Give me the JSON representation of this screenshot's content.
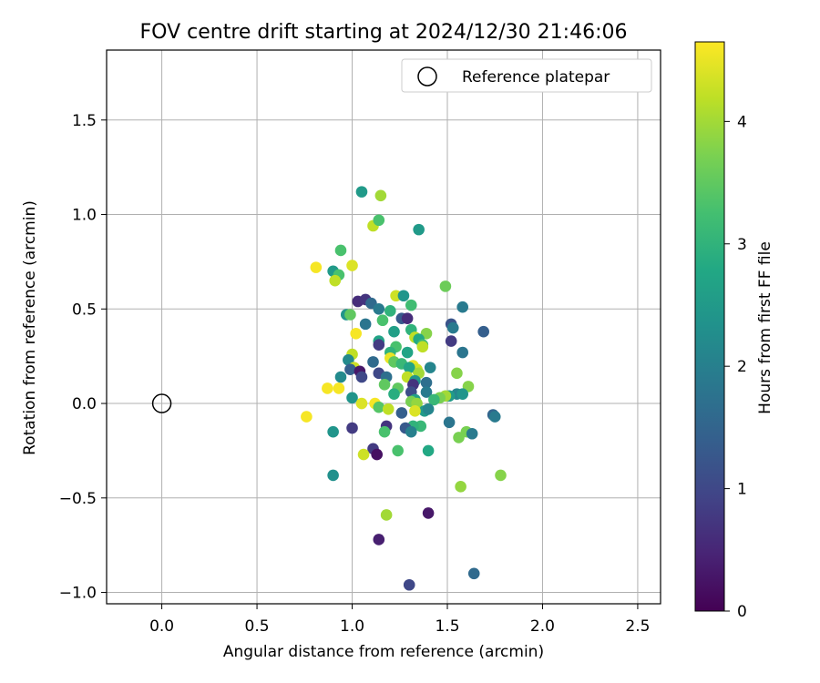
{
  "chart_data": {
    "type": "scatter",
    "title": "FOV centre drift starting at 2024/12/30 21:46:06",
    "xlabel": "Angular distance from reference (arcmin)",
    "ylabel": "Rotation from reference (arcmin)",
    "xlim": [
      -0.29,
      2.62
    ],
    "ylim": [
      -1.06,
      1.87
    ],
    "xticks": [
      "0.0",
      "0.5",
      "1.0",
      "1.5",
      "2.0",
      "2.5"
    ],
    "yticks": [
      "−1.0",
      "−0.5",
      "0.0",
      "0.5",
      "1.0",
      "1.5"
    ],
    "grid": true,
    "legend": {
      "placement": "top-right",
      "entries": [
        "Reference platepar"
      ]
    },
    "reference_point": {
      "x": 0.0,
      "y": 0.0
    },
    "colorbar": {
      "label": "Hours from first FF file",
      "colormap": "viridis",
      "range": [
        0,
        4.65
      ],
      "ticks": [
        "0",
        "1",
        "2",
        "3",
        "4"
      ]
    },
    "points": [
      [
        1.05,
        1.12,
        2.5
      ],
      [
        1.15,
        1.1,
        4.0
      ],
      [
        1.35,
        0.92,
        2.5
      ],
      [
        1.11,
        0.94,
        4.2
      ],
      [
        1.14,
        0.97,
        3.3
      ],
      [
        0.94,
        0.81,
        3.3
      ],
      [
        0.81,
        0.72,
        4.6
      ],
      [
        0.9,
        0.7,
        2.5
      ],
      [
        0.93,
        0.68,
        3.3
      ],
      [
        1.0,
        0.73,
        4.4
      ],
      [
        0.91,
        0.65,
        4.2
      ],
      [
        1.49,
        0.62,
        3.6
      ],
      [
        1.23,
        0.57,
        4.3
      ],
      [
        1.27,
        0.57,
        2.4
      ],
      [
        1.03,
        0.54,
        0.6
      ],
      [
        1.07,
        0.55,
        0.7
      ],
      [
        1.1,
        0.53,
        1.6
      ],
      [
        1.31,
        0.52,
        3.2
      ],
      [
        1.58,
        0.51,
        1.9
      ],
      [
        1.14,
        0.5,
        1.9
      ],
      [
        1.2,
        0.49,
        3.0
      ],
      [
        0.97,
        0.47,
        2.4
      ],
      [
        0.99,
        0.47,
        3.5
      ],
      [
        1.26,
        0.45,
        1.3
      ],
      [
        1.29,
        0.45,
        0.6
      ],
      [
        1.16,
        0.44,
        3.3
      ],
      [
        1.07,
        0.42,
        1.8
      ],
      [
        1.52,
        0.42,
        1.2
      ],
      [
        1.53,
        0.4,
        1.9
      ],
      [
        1.69,
        0.38,
        1.4
      ],
      [
        1.22,
        0.38,
        2.6
      ],
      [
        1.31,
        0.39,
        3.0
      ],
      [
        1.39,
        0.37,
        3.8
      ],
      [
        1.02,
        0.37,
        4.6
      ],
      [
        1.33,
        0.35,
        4.2
      ],
      [
        1.35,
        0.34,
        2.8
      ],
      [
        1.14,
        0.33,
        2.7
      ],
      [
        1.52,
        0.33,
        0.8
      ],
      [
        1.14,
        0.31,
        0.8
      ],
      [
        1.37,
        0.31,
        3.2
      ],
      [
        1.37,
        0.3,
        4.2
      ],
      [
        1.23,
        0.3,
        3.3
      ],
      [
        1.2,
        0.27,
        3.0
      ],
      [
        1.29,
        0.27,
        2.7
      ],
      [
        1.58,
        0.27,
        1.8
      ],
      [
        1.0,
        0.26,
        4.2
      ],
      [
        0.98,
        0.23,
        2.2
      ],
      [
        1.2,
        0.24,
        4.5
      ],
      [
        1.11,
        0.22,
        1.6
      ],
      [
        1.22,
        0.22,
        3.5
      ],
      [
        1.26,
        0.21,
        3.1
      ],
      [
        1.32,
        0.2,
        4.5
      ],
      [
        1.34,
        0.18,
        4.3
      ],
      [
        1.3,
        0.19,
        2.7
      ],
      [
        1.41,
        0.19,
        2.1
      ],
      [
        1.01,
        0.19,
        4.3
      ],
      [
        0.99,
        0.18,
        1.4
      ],
      [
        1.04,
        0.17,
        0.3
      ],
      [
        1.14,
        0.16,
        1.0
      ],
      [
        1.35,
        0.16,
        4.0
      ],
      [
        1.55,
        0.16,
        3.8
      ],
      [
        1.05,
        0.14,
        1.0
      ],
      [
        0.94,
        0.14,
        2.2
      ],
      [
        1.18,
        0.14,
        1.7
      ],
      [
        1.29,
        0.14,
        4.2
      ],
      [
        1.33,
        0.12,
        2.4
      ],
      [
        1.39,
        0.11,
        1.7
      ],
      [
        1.17,
        0.1,
        3.5
      ],
      [
        1.32,
        0.1,
        0.7
      ],
      [
        1.61,
        0.09,
        3.8
      ],
      [
        1.24,
        0.08,
        3.5
      ],
      [
        1.31,
        0.06,
        1.1
      ],
      [
        1.39,
        0.06,
        1.9
      ],
      [
        0.87,
        0.08,
        4.6
      ],
      [
        0.93,
        0.08,
        4.6
      ],
      [
        1.22,
        0.05,
        2.9
      ],
      [
        1.55,
        0.05,
        2.1
      ],
      [
        1.58,
        0.05,
        2.4
      ],
      [
        1.51,
        0.04,
        2.5
      ],
      [
        1.0,
        0.03,
        2.4
      ],
      [
        1.33,
        0.02,
        2.6
      ],
      [
        1.49,
        0.04,
        4.0
      ],
      [
        1.46,
        0.03,
        3.7
      ],
      [
        1.43,
        0.02,
        3.1
      ],
      [
        1.05,
        0.0,
        4.4
      ],
      [
        1.31,
        0.01,
        3.7
      ],
      [
        1.34,
        0.0,
        3.9
      ],
      [
        1.12,
        0.0,
        4.6
      ],
      [
        1.14,
        -0.02,
        3.4
      ],
      [
        1.19,
        -0.03,
        4.2
      ],
      [
        1.38,
        -0.04,
        2.5
      ],
      [
        1.4,
        -0.03,
        2.1
      ],
      [
        1.33,
        -0.04,
        4.4
      ],
      [
        1.26,
        -0.05,
        1.4
      ],
      [
        1.74,
        -0.06,
        1.5
      ],
      [
        1.75,
        -0.07,
        1.9
      ],
      [
        0.76,
        -0.07,
        4.6
      ],
      [
        1.51,
        -0.1,
        1.8
      ],
      [
        1.36,
        -0.12,
        3.1
      ],
      [
        1.18,
        -0.12,
        0.7
      ],
      [
        1.32,
        -0.12,
        3.0
      ],
      [
        1.28,
        -0.13,
        1.3
      ],
      [
        1.0,
        -0.13,
        0.8
      ],
      [
        1.6,
        -0.15,
        3.7
      ],
      [
        1.17,
        -0.15,
        3.3
      ],
      [
        0.9,
        -0.15,
        2.4
      ],
      [
        1.63,
        -0.16,
        1.9
      ],
      [
        1.31,
        -0.15,
        2.0
      ],
      [
        1.56,
        -0.18,
        3.7
      ],
      [
        1.11,
        -0.24,
        0.8
      ],
      [
        1.24,
        -0.25,
        3.3
      ],
      [
        1.4,
        -0.25,
        2.8
      ],
      [
        1.06,
        -0.27,
        4.3
      ],
      [
        1.13,
        -0.27,
        0.2
      ],
      [
        1.78,
        -0.38,
        3.8
      ],
      [
        0.9,
        -0.38,
        2.3
      ],
      [
        1.57,
        -0.44,
        3.9
      ],
      [
        1.18,
        -0.59,
        4.0
      ],
      [
        1.4,
        -0.58,
        0.3
      ],
      [
        1.14,
        -0.72,
        0.4
      ],
      [
        1.3,
        -0.96,
        1.0
      ],
      [
        1.64,
        -0.9,
        1.6
      ]
    ]
  }
}
